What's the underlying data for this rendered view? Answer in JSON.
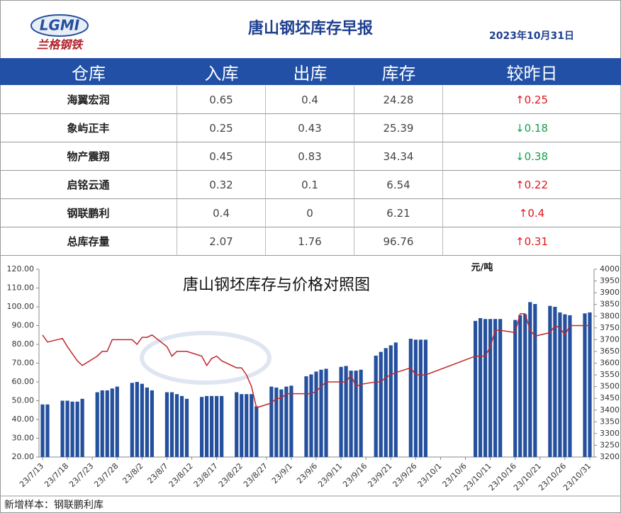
{
  "header": {
    "logo": {
      "mark": "LGMI",
      "name": "兰格钢铁"
    },
    "title": "唐山钢坯库存早报",
    "date": "2023年10月31日"
  },
  "table": {
    "columns": [
      "仓库",
      "入库",
      "出库",
      "库存",
      "较昨日"
    ],
    "rows": [
      [
        "海翼宏润",
        0.65,
        0.4,
        24.28,
        "↑0.25"
      ],
      [
        "象屿正丰",
        0.25,
        0.43,
        25.39,
        "↓0.18"
      ],
      [
        "物产震翔",
        0.45,
        0.83,
        34.34,
        "↓0.38"
      ],
      [
        "启铭云通",
        0.32,
        0.1,
        6.54,
        "↑0.22"
      ],
      [
        "钢联鹏利",
        0.4,
        0,
        6.21,
        "↑0.4"
      ],
      [
        "总库存量",
        2.07,
        1.76,
        96.76,
        "↑0.31"
      ]
    ]
  },
  "footer": "新增样本：钢联鹏利库",
  "chart_data": {
    "type": "bar",
    "title": "唐山钢坯库存与价格对照图",
    "y2_label": "元/吨",
    "x": [
      "23/7/13",
      "23/7/14",
      "23/7/17",
      "23/7/18",
      "23/7/19",
      "23/7/20",
      "23/7/21",
      "23/7/24",
      "23/7/25",
      "23/7/26",
      "23/7/27",
      "23/7/28",
      "23/7/31",
      "23/8/1",
      "23/8/2",
      "23/8/3",
      "23/8/4",
      "23/8/7",
      "23/8/8",
      "23/8/9",
      "23/8/10",
      "23/8/11",
      "23/8/14",
      "23/8/15",
      "23/8/16",
      "23/8/17",
      "23/8/18",
      "23/8/21",
      "23/8/22",
      "23/8/23",
      "23/8/24",
      "23/8/25",
      "23/8/28",
      "23/8/29",
      "23/8/30",
      "23/8/31",
      "23/9/1",
      "23/9/4",
      "23/9/5",
      "23/9/6",
      "23/9/7",
      "23/9/8",
      "23/9/11",
      "23/9/12",
      "23/9/13",
      "23/9/14",
      "23/9/15",
      "23/9/18",
      "23/9/19",
      "23/9/20",
      "23/9/21",
      "23/9/22",
      "23/9/25",
      "23/9/26",
      "23/9/27",
      "23/9/28",
      "23/10/8",
      "23/10/9",
      "23/10/10",
      "23/10/11",
      "23/10/12",
      "23/10/13",
      "23/10/16",
      "23/10/17",
      "23/10/18",
      "23/10/19",
      "23/10/20",
      "23/10/23",
      "23/10/24",
      "23/10/25",
      "23/10/26",
      "23/10/27",
      "23/10/30",
      "23/10/31"
    ],
    "xlim": [
      "23/7/13",
      "23/10/31"
    ],
    "xticks": [
      "23/7/13",
      "23/7/18",
      "23/7/23",
      "23/7/28",
      "23/8/2",
      "23/8/7",
      "23/8/12",
      "23/8/17",
      "23/8/22",
      "23/8/27",
      "23/9/1",
      "23/9/6",
      "23/9/11",
      "23/9/16",
      "23/9/21",
      "23/9/26",
      "23/10/1",
      "23/10/6",
      "23/10/11",
      "23/10/16",
      "23/10/21",
      "23/10/26",
      "23/10/31"
    ],
    "ylim": [
      20,
      120
    ],
    "yticks": [
      {
        "value": 20,
        "label": "20.00"
      },
      {
        "value": 30,
        "label": "30.00"
      },
      {
        "value": 40,
        "label": "40.00"
      },
      {
        "value": 50,
        "label": "50.00"
      },
      {
        "value": 60,
        "label": "60.00"
      },
      {
        "value": 70,
        "label": "70.00"
      },
      {
        "value": 80,
        "label": "80.00"
      },
      {
        "value": 90,
        "label": "90.00"
      },
      {
        "value": 100,
        "label": "100.00"
      },
      {
        "value": 110,
        "label": "110.00"
      },
      {
        "value": 120,
        "label": "120.00"
      }
    ],
    "y2lim": [
      3200,
      4000
    ],
    "y2ticks": [
      3200,
      3250,
      3300,
      3350,
      3400,
      3450,
      3500,
      3550,
      3600,
      3650,
      3700,
      3750,
      3800,
      3850,
      3900,
      3950,
      4000
    ],
    "series": [
      {
        "type": "bar",
        "color": "#24509e",
        "values": [
          48,
          48,
          50,
          50,
          49.5,
          49.5,
          51,
          54.5,
          55.5,
          55.5,
          56.5,
          57.5,
          59.5,
          60,
          59,
          57,
          55.5,
          54.5,
          54.5,
          53.5,
          52.5,
          51,
          52,
          52.5,
          52.5,
          52.5,
          52.5,
          54.5,
          53.5,
          53.5,
          53.5,
          47,
          57.5,
          57,
          56,
          57.5,
          58,
          63,
          64,
          65.5,
          66.5,
          67,
          68,
          68.5,
          66,
          66,
          66.5,
          74,
          76,
          78,
          79.5,
          81,
          83,
          82.5,
          82.5,
          82.5,
          92.5,
          94,
          93.5,
          93.5,
          93.5,
          93.5,
          93,
          95.5,
          96,
          102.5,
          101.5,
          100.5,
          100,
          97,
          96,
          95.5,
          96.5,
          97
        ]
      },
      {
        "type": "line",
        "axis": "y2",
        "color": "#c0282d",
        "values": [
          3720,
          3690,
          3705,
          3670,
          3640,
          3610,
          3590,
          3630,
          3650,
          3650,
          3700,
          3700,
          3700,
          3680,
          3710,
          3710,
          3720,
          3670,
          3630,
          3650,
          3650,
          3650,
          3630,
          3590,
          3620,
          3630,
          3610,
          3580,
          3580,
          3550,
          3500,
          3410,
          3430,
          3450,
          3450,
          3470,
          3470,
          3470,
          3470,
          3480,
          3500,
          3520,
          3520,
          3520,
          3550,
          3500,
          3510,
          3520,
          3520,
          3540,
          3550,
          3560,
          3580,
          3550,
          3550,
          3550,
          3630,
          3630,
          3630,
          3670,
          3740,
          3740,
          3730,
          3810,
          3810,
          3740,
          3715,
          3730,
          3760,
          3750,
          3720,
          3760,
          3760,
          3760
        ]
      }
    ]
  }
}
